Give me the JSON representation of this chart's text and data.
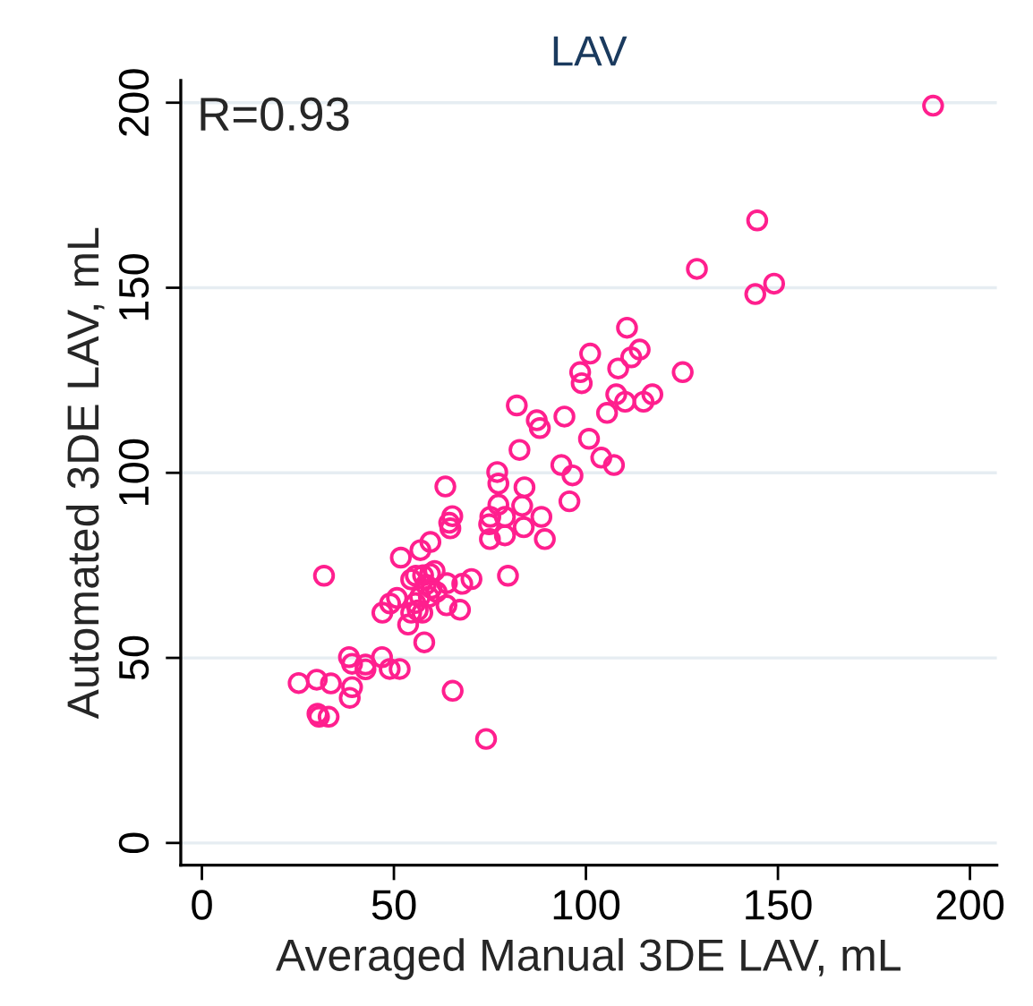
{
  "chart_data": {
    "type": "scatter",
    "title": "LAV",
    "xlabel": "Averaged Manual 3DE LAV, mL",
    "ylabel": "Automated 3DE LAV, mL",
    "annotations": [
      "R=0.93"
    ],
    "xlim": [
      -5.5,
      207
    ],
    "ylim": [
      -6,
      206
    ],
    "xticks": [
      0,
      50,
      100,
      150,
      200
    ],
    "yticks": [
      0,
      50,
      100,
      150,
      200
    ],
    "grid": "y",
    "marker": "circle",
    "series": [
      {
        "color": "#ff1f8e",
        "x": [
          190.4,
          144.6,
          128.9,
          144.1,
          149.0,
          110.7,
          101.1,
          98.5,
          98.9,
          108.4,
          111.8,
          114.0,
          125.2,
          82.0,
          87.2,
          88.0,
          94.4,
          105.5,
          107.9,
          110.2,
          115.0,
          117.3,
          82.7,
          100.8,
          104.0,
          107.3,
          93.6,
          96.5,
          95.7,
          76.9,
          77.2,
          84.0,
          63.4,
          77.2,
          83.4,
          88.4,
          75.1,
          78.9,
          74.8,
          83.8,
          65.2,
          64.4,
          64.7,
          75.0,
          78.9,
          89.3,
          59.5,
          56.9,
          51.8,
          79.7,
          70.2,
          67.8,
          63.8,
          31.8,
          54.5,
          55.7,
          57.6,
          59.4,
          60.6,
          58.3,
          59.8,
          61.1,
          59.1,
          56.8,
          55.6,
          56.2,
          57.4,
          54.5,
          63.7,
          67.2,
          50.8,
          49.0,
          47.0,
          53.7,
          57.9,
          38.3,
          46.9,
          39.1,
          42.6,
          42.6,
          48.9,
          51.5,
          25.2,
          29.9,
          33.6,
          39.1,
          38.5,
          65.3,
          30.1,
          30.5,
          33.0,
          74.0
        ],
        "values": [
          199.2,
          168.2,
          155.1,
          148.3,
          151.1,
          139.2,
          132.2,
          127.2,
          124.2,
          128.2,
          131.2,
          133.3,
          127.2,
          118.2,
          114.2,
          112.1,
          115.2,
          116.2,
          121.2,
          119.2,
          119.2,
          121.2,
          106.2,
          109.2,
          104.1,
          102.1,
          102.1,
          99.3,
          92.3,
          100.2,
          97.1,
          96.1,
          96.3,
          91.4,
          91.1,
          88.1,
          88.1,
          88.1,
          86.1,
          85.3,
          88.3,
          86.5,
          85.0,
          82.1,
          83.1,
          82.1,
          81.3,
          79.1,
          77.1,
          72.2,
          71.3,
          70.0,
          70.2,
          72.2,
          71.2,
          72.2,
          72.3,
          72.7,
          73.5,
          69.8,
          68.8,
          67.8,
          66.5,
          66.5,
          64.8,
          62.8,
          62.2,
          62.2,
          64.2,
          63.0,
          66.2,
          64.7,
          62.2,
          59.0,
          54.2,
          50.2,
          50.2,
          48.4,
          48.2,
          46.9,
          47.0,
          47.0,
          43.2,
          44.1,
          43.1,
          42.1,
          39.2,
          41.1,
          34.9,
          34.1,
          34.1,
          28.1
        ]
      }
    ]
  }
}
